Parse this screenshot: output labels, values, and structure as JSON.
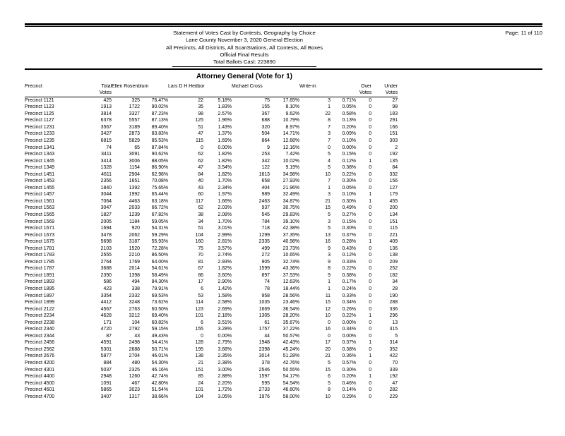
{
  "header": {
    "title_lines": [
      "Statement of Votes Cast by Contests, Geography by Choice",
      "Lane County November 3, 2020 General Election",
      "All Precincts, All Districts, All ScanStations, All Contests, All Boxes",
      "Official Final Results"
    ],
    "ballots_line": "Total Ballots Cast: 223890",
    "page_label": "Page: 11 of 110"
  },
  "contest": {
    "title": "Attorney General (Vote for 1)"
  },
  "table": {
    "head": {
      "precinct": "Precinct",
      "total": [
        "Total",
        "Votes"
      ],
      "candidates": [
        "Ellen Rosenblum",
        "Lars D H Hedbor",
        "Michael Cross",
        "Write-in"
      ],
      "over": [
        "Over",
        "Votes"
      ],
      "under": [
        "Under",
        "Votes"
      ]
    },
    "cell_names": [
      "precinct-cell",
      "total-votes-cell",
      "rosenblum-votes-cell",
      "rosenblum-pct-cell",
      "hedbor-votes-cell",
      "hedbor-pct-cell",
      "cross-votes-cell",
      "cross-pct-cell",
      "writein-votes-cell",
      "writein-pct-cell",
      "over-votes-cell",
      "under-votes-cell"
    ],
    "rows": [
      [
        "Precinct 1121",
        "425",
        "325",
        "76.47%",
        "22",
        "5.18%",
        "75",
        "17.65%",
        "3",
        "0.71%",
        "0",
        "27"
      ],
      [
        "Precinct 1123",
        "1913",
        "1722",
        "90.02%",
        "35",
        "1.83%",
        "155",
        "8.10%",
        "1",
        "0.05%",
        "0",
        "98"
      ],
      [
        "Precinct 1125",
        "3814",
        "3327",
        "87.23%",
        "98",
        "2.57%",
        "367",
        "9.62%",
        "22",
        "0.58%",
        "0",
        "183"
      ],
      [
        "Precinct 1127",
        "6378",
        "5557",
        "87.13%",
        "125",
        "1.96%",
        "688",
        "10.79%",
        "8",
        "0.13%",
        "0",
        "291"
      ],
      [
        "Precinct 1231",
        "3567",
        "3189",
        "89.40%",
        "51",
        "1.43%",
        "320",
        "8.97%",
        "7",
        "0.20%",
        "0",
        "166"
      ],
      [
        "Precinct 1233",
        "3427",
        "2873",
        "83.83%",
        "47",
        "1.37%",
        "504",
        "14.71%",
        "3",
        "0.09%",
        "0",
        "151"
      ],
      [
        "Precinct 1235",
        "6815",
        "5829",
        "85.53%",
        "115",
        "1.69%",
        "864",
        "12.68%",
        "7",
        "0.10%",
        "0",
        "303"
      ],
      [
        "Precinct 1341",
        "74",
        "65",
        "87.84%",
        "0",
        "0.00%",
        "9",
        "12.16%",
        "0",
        "0.00%",
        "0",
        "2"
      ],
      [
        "Precinct 1343",
        "3411",
        "3091",
        "90.62%",
        "62",
        "1.82%",
        "253",
        "7.42%",
        "5",
        "0.15%",
        "0",
        "192"
      ],
      [
        "Precinct 1345",
        "3414",
        "3006",
        "88.05%",
        "62",
        "1.82%",
        "342",
        "10.02%",
        "4",
        "0.12%",
        "1",
        "135"
      ],
      [
        "Precinct 1349",
        "1328",
        "1154",
        "86.90%",
        "47",
        "3.54%",
        "122",
        "9.19%",
        "5",
        "0.38%",
        "0",
        "84"
      ],
      [
        "Precinct 1451",
        "4611",
        "2904",
        "62.98%",
        "84",
        "1.82%",
        "1613",
        "34.98%",
        "10",
        "0.22%",
        "0",
        "332"
      ],
      [
        "Precinct 1453",
        "2356",
        "1651",
        "70.08%",
        "40",
        "1.70%",
        "658",
        "27.93%",
        "7",
        "0.30%",
        "0",
        "156"
      ],
      [
        "Precinct 1455",
        "1840",
        "1392",
        "75.65%",
        "43",
        "2.34%",
        "404",
        "21.96%",
        "1",
        "0.05%",
        "0",
        "127"
      ],
      [
        "Precinct 1457",
        "3044",
        "1992",
        "65.44%",
        "60",
        "1.97%",
        "989",
        "32.49%",
        "3",
        "0.10%",
        "1",
        "179"
      ],
      [
        "Precinct 1561",
        "7064",
        "4463",
        "63.18%",
        "117",
        "1.66%",
        "2463",
        "34.87%",
        "21",
        "0.30%",
        "1",
        "455"
      ],
      [
        "Precinct 1563",
        "3047",
        "2033",
        "66.72%",
        "62",
        "2.03%",
        "937",
        "30.75%",
        "15",
        "0.49%",
        "0",
        "200"
      ],
      [
        "Precinct 1565",
        "1827",
        "1239",
        "67.82%",
        "38",
        "2.08%",
        "545",
        "29.83%",
        "5",
        "0.27%",
        "0",
        "134"
      ],
      [
        "Precinct 1569",
        "2005",
        "1184",
        "59.05%",
        "34",
        "1.70%",
        "784",
        "39.10%",
        "3",
        "0.15%",
        "0",
        "151"
      ],
      [
        "Precinct 1671",
        "1694",
        "920",
        "54.31%",
        "51",
        "3.01%",
        "718",
        "42.38%",
        "5",
        "0.30%",
        "0",
        "115"
      ],
      [
        "Precinct 1673",
        "3478",
        "2062",
        "59.29%",
        "104",
        "2.99%",
        "1299",
        "37.35%",
        "13",
        "0.37%",
        "0",
        "221"
      ],
      [
        "Precinct 1675",
        "5698",
        "3187",
        "55.93%",
        "160",
        "2.81%",
        "2335",
        "40.98%",
        "16",
        "0.28%",
        "1",
        "409"
      ],
      [
        "Precinct 1781",
        "2103",
        "1520",
        "72.28%",
        "75",
        "3.57%",
        "499",
        "23.73%",
        "9",
        "0.43%",
        "0",
        "136"
      ],
      [
        "Precinct 1783",
        "2555",
        "2210",
        "86.50%",
        "70",
        "2.74%",
        "272",
        "10.65%",
        "3",
        "0.12%",
        "0",
        "138"
      ],
      [
        "Precinct 1785",
        "2764",
        "1769",
        "64.00%",
        "81",
        "2.93%",
        "905",
        "32.74%",
        "9",
        "0.33%",
        "0",
        "209"
      ],
      [
        "Precinct 1787",
        "3688",
        "2014",
        "54.61%",
        "67",
        "1.82%",
        "1599",
        "43.36%",
        "8",
        "0.22%",
        "0",
        "252"
      ],
      [
        "Precinct 1891",
        "2390",
        "1398",
        "58.49%",
        "86",
        "3.60%",
        "897",
        "37.53%",
        "9",
        "0.38%",
        "0",
        "182"
      ],
      [
        "Precinct 1893",
        "586",
        "494",
        "84.30%",
        "17",
        "2.90%",
        "74",
        "12.63%",
        "1",
        "0.17%",
        "0",
        "34"
      ],
      [
        "Precinct 1895",
        "423",
        "338",
        "79.91%",
        "6",
        "1.42%",
        "78",
        "18.44%",
        "1",
        "0.24%",
        "0",
        "28"
      ],
      [
        "Precinct 1897",
        "3354",
        "2332",
        "69.53%",
        "53",
        "1.58%",
        "958",
        "28.56%",
        "11",
        "0.33%",
        "0",
        "190"
      ],
      [
        "Precinct 1899",
        "4412",
        "3248",
        "73.62%",
        "114",
        "2.58%",
        "1035",
        "23.46%",
        "15",
        "0.34%",
        "0",
        "288"
      ],
      [
        "Precinct 2122",
        "4567",
        "2763",
        "60.50%",
        "123",
        "2.69%",
        "1669",
        "36.54%",
        "12",
        "0.26%",
        "0",
        "336"
      ],
      [
        "Precinct 2234",
        "4628",
        "3212",
        "69.40%",
        "101",
        "2.18%",
        "1305",
        "28.20%",
        "10",
        "0.22%",
        "1",
        "296"
      ],
      [
        "Precinct 2238",
        "171",
        "104",
        "60.82%",
        "6",
        "3.51%",
        "61",
        "35.67%",
        "0",
        "0.00%",
        "0",
        "13"
      ],
      [
        "Precinct 2340",
        "4720",
        "2792",
        "59.15%",
        "155",
        "3.28%",
        "1757",
        "37.22%",
        "16",
        "0.34%",
        "0",
        "315"
      ],
      [
        "Precinct 2344",
        "87",
        "43",
        "49.43%",
        "0",
        "0.00%",
        "44",
        "50.57%",
        "0",
        "0.00%",
        "0",
        "5"
      ],
      [
        "Precinct 2456",
        "4591",
        "2498",
        "54.41%",
        "128",
        "2.79%",
        "1948",
        "42.43%",
        "17",
        "0.37%",
        "1",
        "314"
      ],
      [
        "Precinct 2562",
        "5301",
        "2688",
        "50.71%",
        "195",
        "3.68%",
        "2398",
        "45.24%",
        "20",
        "0.38%",
        "0",
        "352"
      ],
      [
        "Precinct 2676",
        "5877",
        "2704",
        "46.01%",
        "138",
        "2.35%",
        "3014",
        "51.28%",
        "21",
        "0.36%",
        "1",
        "422"
      ],
      [
        "Precinct 4200",
        "884",
        "480",
        "54.30%",
        "21",
        "2.38%",
        "378",
        "42.76%",
        "5",
        "0.57%",
        "0",
        "70"
      ],
      [
        "Precinct 4301",
        "5037",
        "2325",
        "46.16%",
        "151",
        "3.00%",
        "2546",
        "50.55%",
        "15",
        "0.30%",
        "0",
        "339"
      ],
      [
        "Precinct 4400",
        "2948",
        "1260",
        "42.74%",
        "85",
        "2.88%",
        "1597",
        "54.17%",
        "6",
        "0.20%",
        "1",
        "192"
      ],
      [
        "Precinct 4500",
        "1091",
        "467",
        "42.80%",
        "24",
        "2.20%",
        "595",
        "54.54%",
        "5",
        "0.46%",
        "0",
        "47"
      ],
      [
        "Precinct 4601",
        "5865",
        "3023",
        "51.54%",
        "101",
        "1.72%",
        "2733",
        "46.60%",
        "8",
        "0.14%",
        "0",
        "282"
      ],
      [
        "Precinct 4700",
        "3407",
        "1317",
        "38.66%",
        "104",
        "3.05%",
        "1976",
        "58.00%",
        "10",
        "0.29%",
        "0",
        "229"
      ]
    ]
  }
}
